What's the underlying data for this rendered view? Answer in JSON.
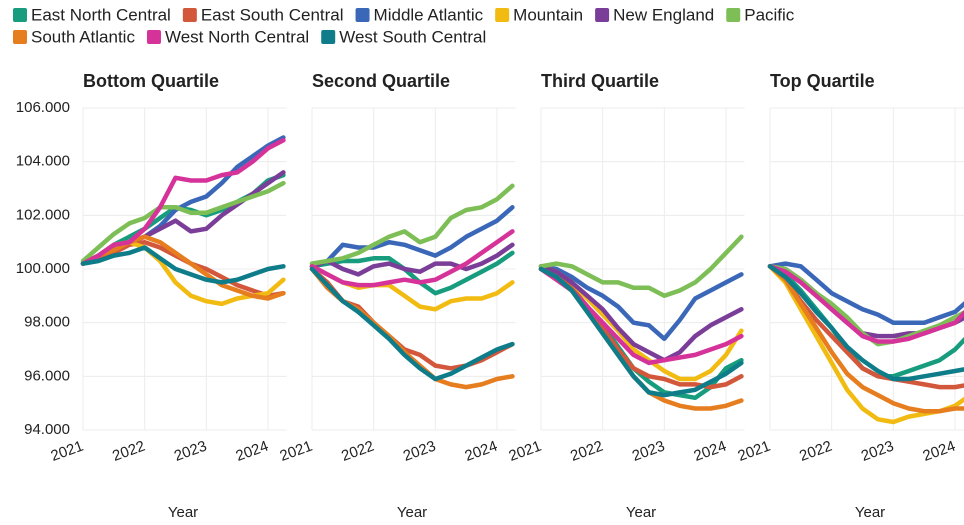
{
  "chart_data": [
    {
      "type": "line",
      "title": "Bottom Quartile",
      "x_label": "Year",
      "x": [
        2021,
        2021.25,
        2021.5,
        2021.75,
        2022,
        2022.25,
        2022.5,
        2022.75,
        2023,
        2023.25,
        2023.5,
        2023.75,
        2024,
        2024.25
      ],
      "xlim": [
        2021,
        2024.3
      ],
      "xticks": [
        2021,
        2022,
        2023,
        2024
      ],
      "ylim": [
        94,
        106
      ],
      "yticks": [
        {
          "value": 94,
          "label": "94.000"
        },
        {
          "value": 96,
          "label": "96.000"
        },
        {
          "value": 98,
          "label": "98.000"
        },
        {
          "value": 100,
          "label": "100.000"
        },
        {
          "value": 102,
          "label": "102.000"
        },
        {
          "value": 104,
          "label": "104.000"
        },
        {
          "value": 106,
          "label": "106.000"
        }
      ],
      "grid": true,
      "series": [
        {
          "name": "East North Central",
          "color": "#179c7d",
          "values": [
            100.2,
            100.5,
            100.9,
            101.2,
            101.5,
            101.9,
            102.3,
            102.2,
            102.0,
            102.2,
            102.5,
            102.8,
            103.3,
            103.5
          ]
        },
        {
          "name": "East South Central",
          "color": "#d3573a",
          "values": [
            100.2,
            100.4,
            100.6,
            100.9,
            101.0,
            100.8,
            100.5,
            100.2,
            100.0,
            99.7,
            99.4,
            99.2,
            99.0,
            99.1
          ]
        },
        {
          "name": "Middle Atlantic",
          "color": "#3a67b8",
          "values": [
            100.2,
            100.5,
            100.8,
            101.0,
            101.2,
            101.6,
            102.2,
            102.5,
            102.7,
            103.2,
            103.8,
            104.2,
            104.6,
            104.9
          ]
        },
        {
          "name": "Mountain",
          "color": "#f2bb12",
          "values": [
            100.2,
            100.5,
            100.9,
            101.0,
            100.8,
            100.3,
            99.5,
            99.0,
            98.8,
            98.7,
            98.9,
            99.0,
            99.1,
            99.6
          ]
        },
        {
          "name": "New England",
          "color": "#7a3d98",
          "values": [
            100.2,
            100.5,
            100.8,
            101.0,
            101.2,
            101.5,
            101.8,
            101.4,
            101.5,
            102.0,
            102.4,
            102.8,
            103.2,
            103.6
          ]
        },
        {
          "name": "Pacific",
          "color": "#7dbf56",
          "values": [
            100.3,
            100.8,
            101.3,
            101.7,
            101.9,
            102.3,
            102.3,
            102.1,
            102.1,
            102.3,
            102.5,
            102.7,
            102.9,
            103.2
          ]
        },
        {
          "name": "South Atlantic",
          "color": "#e67d1f",
          "values": [
            100.2,
            100.5,
            100.7,
            101.0,
            101.2,
            101.0,
            100.6,
            100.2,
            99.8,
            99.4,
            99.2,
            99.0,
            98.9,
            99.1
          ]
        },
        {
          "name": "West North Central",
          "color": "#d6339a",
          "values": [
            100.2,
            100.5,
            100.9,
            101.0,
            101.5,
            102.3,
            103.4,
            103.3,
            103.3,
            103.5,
            103.6,
            104.0,
            104.5,
            104.8
          ]
        },
        {
          "name": "West South Central",
          "color": "#0e7d89",
          "values": [
            100.2,
            100.3,
            100.5,
            100.6,
            100.8,
            100.4,
            100.0,
            99.8,
            99.6,
            99.5,
            99.6,
            99.8,
            100.0,
            100.1
          ]
        }
      ]
    },
    {
      "type": "line",
      "title": "Second Quartile",
      "x_label": "Year",
      "x": [
        2021,
        2021.25,
        2021.5,
        2021.75,
        2022,
        2022.25,
        2022.5,
        2022.75,
        2023,
        2023.25,
        2023.5,
        2023.75,
        2024,
        2024.25
      ],
      "xlim": [
        2021,
        2024.3
      ],
      "xticks": [
        2021,
        2022,
        2023,
        2024
      ],
      "ylim": [
        94,
        106
      ],
      "series": [
        {
          "color": "#179c7d",
          "values": [
            100.1,
            100.2,
            100.3,
            100.3,
            100.4,
            100.4,
            100.0,
            99.5,
            99.1,
            99.3,
            99.6,
            99.9,
            100.2,
            100.6
          ]
        },
        {
          "color": "#d3573a",
          "values": [
            100.0,
            99.5,
            98.8,
            98.6,
            98.0,
            97.5,
            97.0,
            96.8,
            96.4,
            96.3,
            96.4,
            96.6,
            96.9,
            97.2
          ]
        },
        {
          "color": "#3a67b8",
          "values": [
            100.1,
            100.3,
            100.9,
            100.8,
            100.8,
            101.0,
            100.9,
            100.7,
            100.5,
            100.8,
            101.2,
            101.5,
            101.8,
            102.3
          ]
        },
        {
          "color": "#f2bb12",
          "values": [
            100.1,
            99.8,
            99.5,
            99.3,
            99.4,
            99.4,
            99.0,
            98.6,
            98.5,
            98.8,
            98.9,
            98.9,
            99.1,
            99.5
          ]
        },
        {
          "color": "#7a3d98",
          "values": [
            100.1,
            100.3,
            100.0,
            99.8,
            100.1,
            100.2,
            100.0,
            99.9,
            100.2,
            100.2,
            100.0,
            100.2,
            100.5,
            100.9
          ]
        },
        {
          "color": "#7dbf56",
          "values": [
            100.2,
            100.3,
            100.4,
            100.6,
            100.9,
            101.2,
            101.4,
            101.0,
            101.2,
            101.9,
            102.2,
            102.3,
            102.6,
            103.1
          ]
        },
        {
          "color": "#e67d1f",
          "values": [
            100.0,
            99.3,
            98.8,
            98.5,
            98.0,
            97.5,
            96.9,
            96.4,
            95.9,
            95.7,
            95.6,
            95.7,
            95.9,
            96.0
          ]
        },
        {
          "color": "#d6339a",
          "values": [
            100.1,
            99.8,
            99.5,
            99.4,
            99.4,
            99.5,
            99.6,
            99.5,
            99.6,
            99.9,
            100.2,
            100.6,
            101.0,
            101.4
          ]
        },
        {
          "color": "#0e7d89",
          "values": [
            100.0,
            99.4,
            98.8,
            98.4,
            97.9,
            97.4,
            96.8,
            96.3,
            95.9,
            96.1,
            96.4,
            96.7,
            97.0,
            97.2
          ]
        }
      ]
    },
    {
      "type": "line",
      "title": "Third Quartile",
      "x_label": "Year",
      "x": [
        2021,
        2021.25,
        2021.5,
        2021.75,
        2022,
        2022.25,
        2022.5,
        2022.75,
        2023,
        2023.25,
        2023.5,
        2023.75,
        2024,
        2024.25
      ],
      "xlim": [
        2021,
        2024.3
      ],
      "xticks": [
        2021,
        2022,
        2023,
        2024
      ],
      "ylim": [
        94,
        106
      ],
      "series": [
        {
          "color": "#179c7d",
          "values": [
            100.0,
            99.8,
            99.3,
            98.6,
            97.9,
            97.1,
            96.3,
            95.8,
            95.4,
            95.3,
            95.2,
            95.6,
            96.3,
            96.6
          ]
        },
        {
          "color": "#d3573a",
          "values": [
            100.0,
            99.8,
            99.3,
            98.6,
            97.8,
            97.0,
            96.3,
            96.0,
            95.9,
            95.7,
            95.7,
            95.6,
            95.7,
            96.0
          ]
        },
        {
          "color": "#3a67b8",
          "values": [
            100.1,
            100.0,
            99.7,
            99.3,
            99.0,
            98.6,
            98.0,
            97.9,
            97.4,
            98.1,
            98.9,
            99.2,
            99.5,
            99.8
          ]
        },
        {
          "color": "#f2bb12",
          "values": [
            100.1,
            99.9,
            99.5,
            98.9,
            98.3,
            97.7,
            97.0,
            96.6,
            96.2,
            95.9,
            95.9,
            96.2,
            96.8,
            97.7
          ]
        },
        {
          "color": "#7a3d98",
          "values": [
            100.1,
            99.9,
            99.5,
            99.0,
            98.5,
            97.8,
            97.2,
            96.9,
            96.6,
            96.9,
            97.5,
            97.9,
            98.2,
            98.5
          ]
        },
        {
          "color": "#7dbf56",
          "values": [
            100.1,
            100.2,
            100.1,
            99.8,
            99.5,
            99.5,
            99.3,
            99.3,
            99.0,
            99.2,
            99.5,
            100.0,
            100.6,
            101.2
          ]
        },
        {
          "color": "#e67d1f",
          "values": [
            100.0,
            99.7,
            99.2,
            98.4,
            97.6,
            96.8,
            96.0,
            95.4,
            95.1,
            94.9,
            94.8,
            94.8,
            94.9,
            95.1
          ]
        },
        {
          "color": "#d6339a",
          "values": [
            100.0,
            99.6,
            99.2,
            98.6,
            98.0,
            97.4,
            96.8,
            96.5,
            96.6,
            96.7,
            96.8,
            97.0,
            97.2,
            97.5
          ]
        },
        {
          "color": "#0e7d89",
          "values": [
            100.0,
            99.7,
            99.2,
            98.4,
            97.6,
            96.8,
            96.0,
            95.4,
            95.3,
            95.4,
            95.5,
            95.8,
            96.1,
            96.5
          ]
        }
      ]
    },
    {
      "type": "line",
      "title": "Top Quartile",
      "x_label": "Year",
      "x": [
        2021,
        2021.25,
        2021.5,
        2021.75,
        2022,
        2022.25,
        2022.5,
        2022.75,
        2023,
        2023.25,
        2023.5,
        2023.75,
        2024,
        2024.25
      ],
      "xlim": [
        2021,
        2024.3
      ],
      "xticks": [
        2021,
        2022,
        2023,
        2024
      ],
      "ylim": [
        94,
        106
      ],
      "series": [
        {
          "color": "#179c7d",
          "values": [
            100.1,
            99.8,
            99.2,
            98.5,
            97.8,
            97.0,
            96.3,
            96.0,
            96.0,
            96.2,
            96.4,
            96.6,
            97.0,
            97.6
          ]
        },
        {
          "color": "#d3573a",
          "values": [
            100.1,
            99.6,
            98.8,
            98.1,
            97.5,
            96.9,
            96.3,
            96.0,
            95.9,
            95.8,
            95.7,
            95.6,
            95.6,
            95.7
          ]
        },
        {
          "color": "#3a67b8",
          "values": [
            100.1,
            100.2,
            100.1,
            99.6,
            99.1,
            98.8,
            98.5,
            98.3,
            98.0,
            98.0,
            98.0,
            98.2,
            98.4,
            98.9
          ]
        },
        {
          "color": "#f2bb12",
          "values": [
            100.1,
            99.5,
            98.5,
            97.5,
            96.5,
            95.5,
            94.8,
            94.4,
            94.3,
            94.5,
            94.6,
            94.7,
            94.9,
            95.3
          ]
        },
        {
          "color": "#7a3d98",
          "values": [
            100.1,
            100.0,
            99.6,
            99.1,
            98.5,
            98.0,
            97.6,
            97.5,
            97.5,
            97.6,
            97.6,
            97.8,
            98.0,
            98.3
          ]
        },
        {
          "color": "#7dbf56",
          "values": [
            100.1,
            100.0,
            99.6,
            99.1,
            98.7,
            98.2,
            97.6,
            97.2,
            97.3,
            97.5,
            97.7,
            97.9,
            98.2,
            98.5
          ]
        },
        {
          "color": "#e67d1f",
          "values": [
            100.1,
            99.6,
            98.7,
            97.8,
            96.9,
            96.1,
            95.6,
            95.3,
            95.0,
            94.8,
            94.7,
            94.7,
            94.8,
            94.8
          ]
        },
        {
          "color": "#d6339a",
          "values": [
            100.1,
            99.9,
            99.5,
            99.0,
            98.5,
            98.0,
            97.5,
            97.3,
            97.3,
            97.4,
            97.6,
            97.8,
            98.0,
            98.6
          ]
        },
        {
          "color": "#0e7d89",
          "values": [
            100.1,
            99.7,
            99.1,
            98.4,
            97.8,
            97.1,
            96.6,
            96.2,
            95.9,
            95.9,
            96.0,
            96.1,
            96.2,
            96.3
          ]
        }
      ]
    }
  ]
}
